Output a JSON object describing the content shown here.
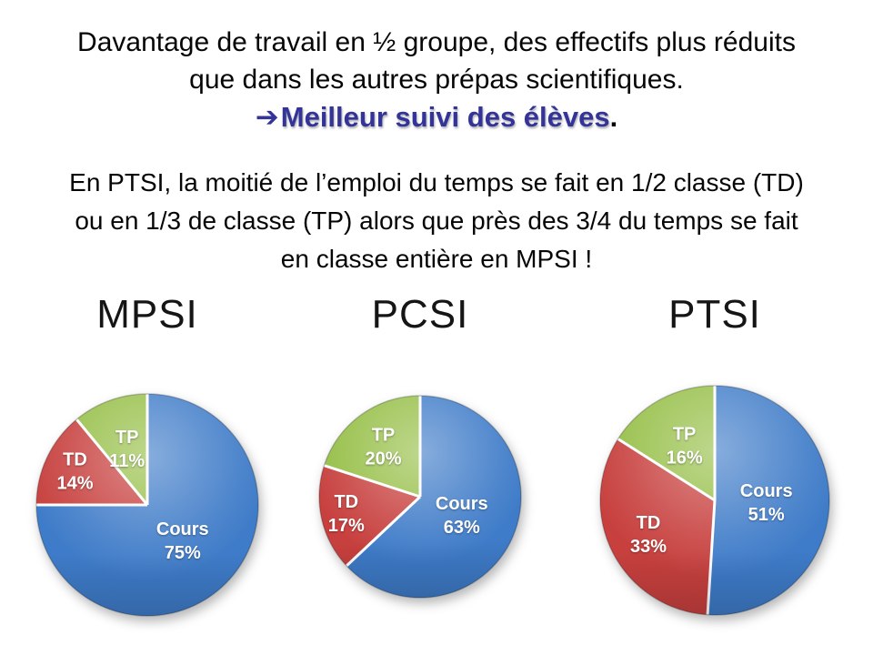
{
  "slide": {
    "title_lines": [
      "Davantage de travail en ½ groupe, des effectifs plus réduits",
      "que dans les autres prépas scientifiques."
    ],
    "highlight": {
      "arrow": "➔",
      "text": "Meilleur suivi des élèves",
      "period": ".",
      "color": "#333399"
    },
    "paragraph_lines": [
      "En PTSI, la moitié de l’emploi du temps se fait en 1/2 classe (TD)",
      "ou en 1/3 de classe (TP) alors que près des 3/4 du temps se fait",
      "en classe entière en MPSI !"
    ]
  },
  "chart_data": [
    {
      "type": "pie",
      "title": "MPSI",
      "start_angle_deg": 0,
      "direction": "clockwise",
      "value_suffix": "%",
      "label_color": "#ffffff",
      "slices": [
        {
          "label": "Cours",
          "value": 75,
          "color": "#3E7BC8",
          "label_r": 0.45
        },
        {
          "label": "TD",
          "value": 14,
          "color": "#C7403E",
          "label_r": 0.72
        },
        {
          "label": "TP",
          "value": 11,
          "color": "#95BE45",
          "label_r": 0.54
        }
      ]
    },
    {
      "type": "pie",
      "title": "PCSI",
      "start_angle_deg": 0,
      "direction": "clockwise",
      "value_suffix": "%",
      "label_color": "#ffffff",
      "slices": [
        {
          "label": "Cours",
          "value": 63,
          "color": "#3E7BC8",
          "label_r": 0.45
        },
        {
          "label": "TD",
          "value": 17,
          "color": "#C7403E",
          "label_r": 0.75
        },
        {
          "label": "TP",
          "value": 20,
          "color": "#95BE45",
          "label_r": 0.62
        }
      ]
    },
    {
      "type": "pie",
      "title": "PTSI",
      "start_angle_deg": 0,
      "direction": "clockwise",
      "value_suffix": "%",
      "label_color": "#ffffff",
      "slices": [
        {
          "label": "Cours",
          "value": 51,
          "color": "#3E7BC8",
          "label_r": 0.45
        },
        {
          "label": "TD",
          "value": 33,
          "color": "#C7403E",
          "label_r": 0.65
        },
        {
          "label": "TP",
          "value": 16,
          "color": "#95BE45",
          "label_r": 0.55
        }
      ]
    }
  ]
}
